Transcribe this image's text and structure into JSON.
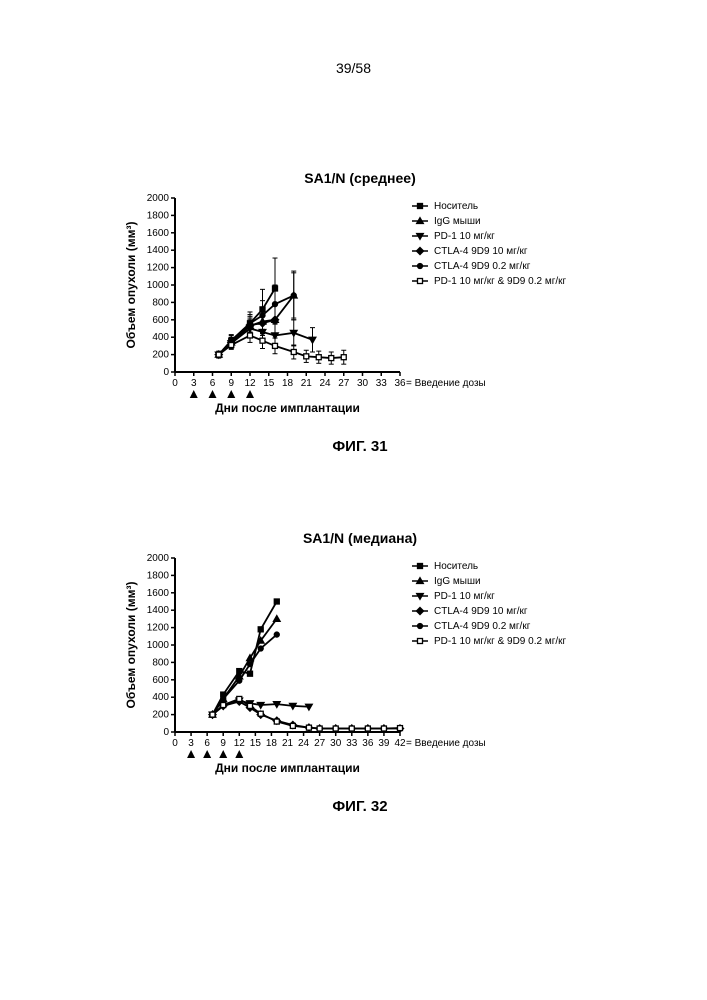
{
  "page_number": "39/58",
  "colors": {
    "axis": "#000000",
    "series": "#000000",
    "background": "#ffffff"
  },
  "typography": {
    "page_number_fontsize": 14,
    "title_fontsize": 14,
    "axis_label_fontsize": 12,
    "tick_fontsize": 10,
    "legend_fontsize": 10,
    "caption_fontsize": 15
  },
  "legend_items": [
    {
      "marker": "filled-square",
      "label": "Носитель"
    },
    {
      "marker": "filled-up-tri",
      "label": "IgG мыши"
    },
    {
      "marker": "filled-down-tri",
      "label": "PD-1 10 мг/кг"
    },
    {
      "marker": "filled-diamond",
      "label": "CTLA-4 9D9 10 мг/кг"
    },
    {
      "marker": "filled-circle",
      "label": "CTLA-4 9D9 0.2 мг/кг"
    },
    {
      "marker": "open-square",
      "label": "PD-1 10 мг/кг & 9D9 0.2 мг/кг"
    }
  ],
  "dosing_label": "= Введение дозы",
  "dosing_days": [
    3,
    6,
    9,
    12
  ],
  "chart31": {
    "title": "SA1/N (среднее)",
    "caption": "ФИГ. 31",
    "type": "line-with-errorbars",
    "x_label": "Дни после имплантации",
    "y_label": "Объем опухоли (мм³)",
    "xlim": [
      0,
      36
    ],
    "xtick_step": 3,
    "ylim": [
      0,
      2000
    ],
    "ytick_step": 200,
    "line_color": "#000000",
    "line_width": 1.8,
    "marker_size": 5,
    "series": {
      "vehicle": {
        "marker": "filled-square",
        "x": [
          7,
          9,
          12,
          14,
          16
        ],
        "y": [
          200,
          360,
          560,
          720,
          960
        ],
        "err": [
          40,
          70,
          130,
          230,
          350
        ]
      },
      "igg": {
        "marker": "filled-up-tri",
        "x": [
          7,
          9,
          12,
          14,
          16,
          19
        ],
        "y": [
          200,
          340,
          530,
          580,
          600,
          880
        ],
        "err": [
          30,
          50,
          90,
          140,
          170,
          280
        ]
      },
      "pd1": {
        "marker": "filled-down-tri",
        "x": [
          7,
          9,
          12,
          14,
          16,
          19,
          22
        ],
        "y": [
          200,
          330,
          500,
          460,
          420,
          450,
          370
        ],
        "err": [
          30,
          60,
          100,
          120,
          130,
          150,
          140
        ]
      },
      "ctla10": {
        "marker": "filled-diamond",
        "x": [
          7,
          9,
          12,
          14,
          16
        ],
        "y": [
          200,
          340,
          540,
          560,
          600
        ],
        "err": [
          30,
          60,
          100,
          140,
          170
        ]
      },
      "ctla02": {
        "marker": "filled-circle",
        "x": [
          7,
          9,
          12,
          14,
          16,
          19
        ],
        "y": [
          200,
          360,
          560,
          650,
          780,
          880
        ],
        "err": [
          30,
          60,
          100,
          170,
          220,
          260
        ]
      },
      "combo": {
        "marker": "open-square",
        "x": [
          7,
          9,
          12,
          14,
          16,
          19,
          21,
          23,
          25,
          27
        ],
        "y": [
          200,
          310,
          420,
          360,
          300,
          230,
          180,
          170,
          160,
          170
        ],
        "err": [
          30,
          50,
          80,
          90,
          90,
          80,
          70,
          70,
          70,
          80
        ]
      }
    }
  },
  "chart32": {
    "title": "SA1/N (медиана)",
    "caption": "ФИГ. 32",
    "type": "line",
    "x_label": "Дни после имплантации",
    "y_label": "Объем опухоли (мм³)",
    "xlim": [
      0,
      42
    ],
    "xtick_step": 3,
    "ylim": [
      0,
      2000
    ],
    "ytick_step": 200,
    "line_color": "#000000",
    "line_width": 1.8,
    "marker_size": 5,
    "series": {
      "vehicle": {
        "marker": "filled-square",
        "x": [
          7,
          9,
          12,
          14,
          16,
          19
        ],
        "y": [
          200,
          430,
          700,
          670,
          1180,
          1500
        ]
      },
      "igg": {
        "marker": "filled-up-tri",
        "x": [
          7,
          9,
          12,
          14,
          16,
          19
        ],
        "y": [
          200,
          380,
          640,
          850,
          1050,
          1300
        ]
      },
      "ctla02": {
        "marker": "filled-circle",
        "x": [
          7,
          9,
          12,
          14,
          16,
          19
        ],
        "y": [
          200,
          380,
          590,
          780,
          960,
          1120
        ]
      },
      "pd1": {
        "marker": "filled-down-tri",
        "x": [
          7,
          9,
          12,
          14,
          16,
          19,
          22,
          25
        ],
        "y": [
          200,
          300,
          360,
          330,
          310,
          320,
          300,
          290
        ]
      },
      "ctla10": {
        "marker": "filled-diamond",
        "x": [
          7,
          9,
          12,
          14,
          16,
          19,
          22,
          25,
          27,
          30,
          33,
          36,
          39,
          42
        ],
        "y": [
          200,
          300,
          350,
          280,
          200,
          130,
          80,
          50,
          40,
          40,
          40,
          40,
          40,
          40
        ]
      },
      "combo": {
        "marker": "open-square",
        "x": [
          7,
          9,
          12,
          14,
          16,
          19,
          22,
          25,
          27,
          30,
          33,
          36,
          39,
          42
        ],
        "y": [
          200,
          310,
          380,
          300,
          210,
          120,
          70,
          50,
          40,
          40,
          40,
          40,
          40,
          45
        ]
      }
    }
  }
}
